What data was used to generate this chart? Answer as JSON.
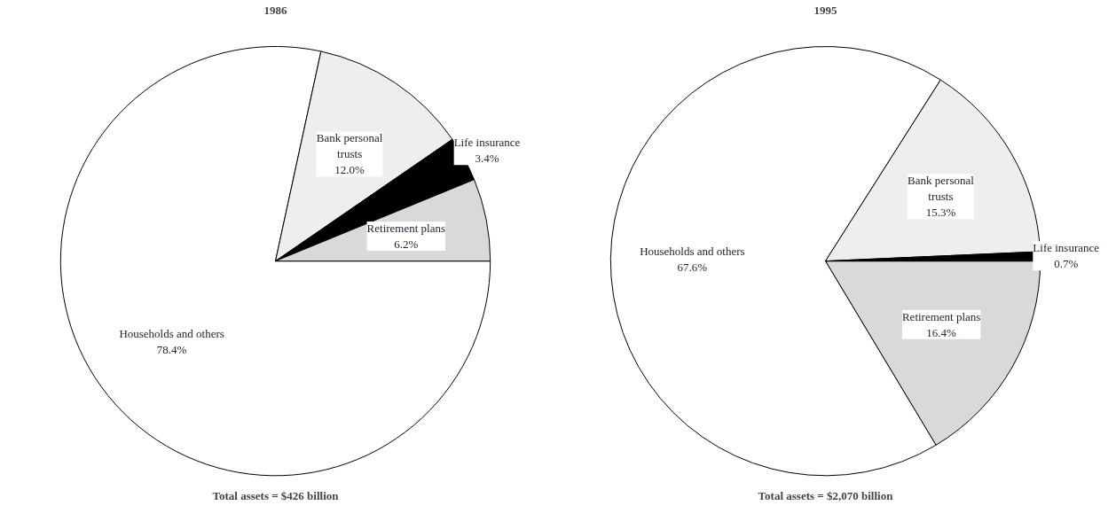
{
  "chart_data": [
    {
      "type": "pie",
      "title": "1986",
      "categories": [
        "Households and others",
        "Bank personal trusts",
        "Life insurance",
        "Retirement plans"
      ],
      "values": [
        78.4,
        12.0,
        3.4,
        6.2
      ],
      "colors": [
        "#ffffff",
        "#eeeeee",
        "#000000",
        "#d9d9d9"
      ],
      "value_labels": [
        "78.4%",
        "12.0%",
        "3.4%",
        "6.2%"
      ],
      "annotations": [
        "Total assets = $426 billion"
      ]
    },
    {
      "type": "pie",
      "title": "1995",
      "categories": [
        "Retirement plans",
        "Households and others",
        "Bank personal trusts",
        "Life insurance"
      ],
      "values": [
        16.4,
        67.6,
        15.3,
        0.7
      ],
      "colors": [
        "#d9d9d9",
        "#ffffff",
        "#eeeeee",
        "#000000"
      ],
      "value_labels": [
        "16.4%",
        "67.6%",
        "15.3%",
        "0.7%"
      ],
      "annotations": [
        "Total assets = $2,070 billion"
      ]
    }
  ]
}
